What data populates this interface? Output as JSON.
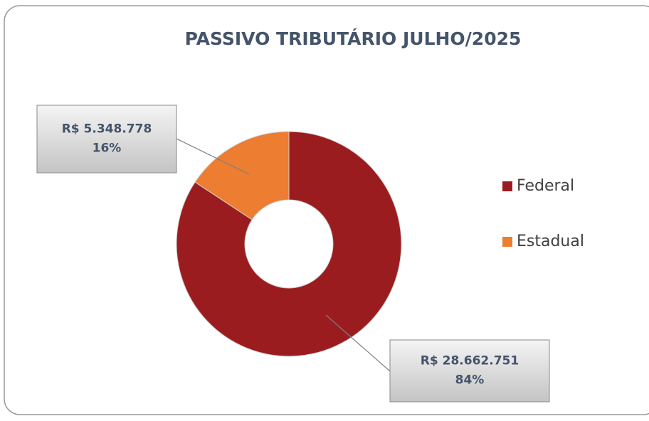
{
  "chart_data": {
    "type": "donut",
    "title": "PASSIVO TRIBUTÁRIO JULHO/2025",
    "categories": [
      "Federal",
      "Estadual"
    ],
    "values": [
      28662751,
      5348778
    ],
    "value_labels": [
      "R$ 28.662.751",
      "R$ 5.348.778"
    ],
    "percent_labels": [
      "84%",
      "16%"
    ],
    "colors": [
      "#9b1c1f",
      "#ed7d31"
    ],
    "legend": "right"
  }
}
